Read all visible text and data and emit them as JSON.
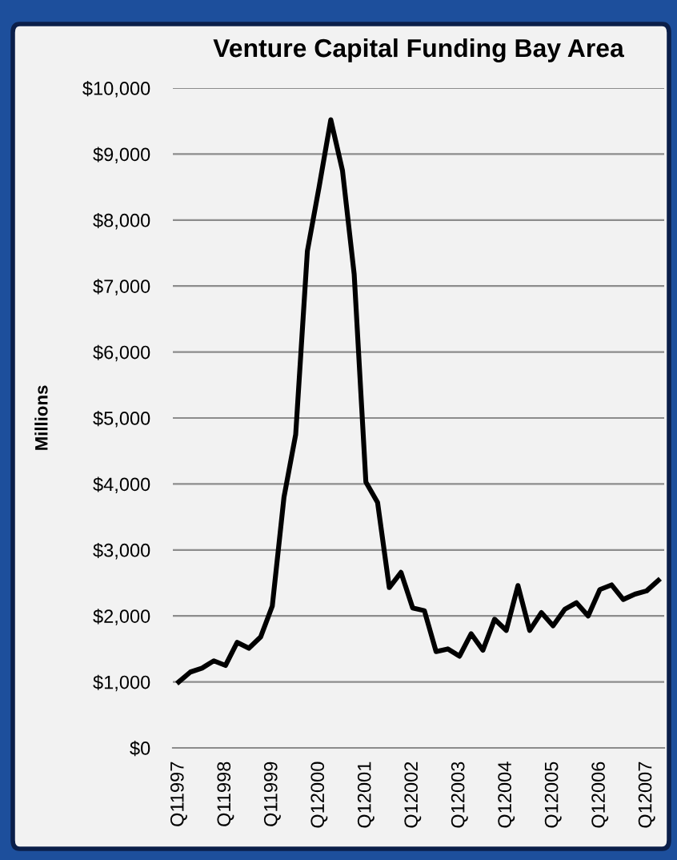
{
  "chart_data": {
    "type": "line",
    "title": "Venture Capital Funding Bay Area",
    "ylabel": "Millions",
    "categories": [
      "Q11997",
      null,
      null,
      null,
      "Q11998",
      null,
      null,
      null,
      "Q11999",
      null,
      null,
      null,
      "Q12000",
      null,
      null,
      null,
      "Q12001",
      null,
      null,
      null,
      "Q12002",
      null,
      null,
      null,
      "Q12003",
      null,
      null,
      null,
      "Q12004",
      null,
      null,
      null,
      "Q12005",
      null,
      null,
      null,
      "Q12006",
      null,
      null,
      null,
      "Q12007",
      null
    ],
    "series": [
      {
        "color": "#000000",
        "values": [
          1000,
          1150,
          1210,
          1320,
          1250,
          1600,
          1510,
          1680,
          2150,
          3800,
          4750,
          7530,
          8500,
          9520,
          8750,
          7180,
          4030,
          3720,
          2430,
          2660,
          2120,
          2080,
          1460,
          1500,
          1390,
          1730,
          1480,
          1950,
          1780,
          2460,
          1780,
          2050,
          1850,
          2100,
          2200,
          2000,
          2400,
          2470,
          2250,
          2330,
          2380,
          2540
        ]
      }
    ],
    "ylim": [
      0,
      10000
    ],
    "yticks": [
      {
        "value": 0,
        "label": "$0"
      },
      {
        "value": 1000,
        "label": "$1,000"
      },
      {
        "value": 2000,
        "label": "$2,000"
      },
      {
        "value": 3000,
        "label": "$3,000"
      },
      {
        "value": 4000,
        "label": "$4,000"
      },
      {
        "value": 5000,
        "label": "$5,000"
      },
      {
        "value": 6000,
        "label": "$6,000"
      },
      {
        "value": 7000,
        "label": "$7,000"
      },
      {
        "value": 8000,
        "label": "$8,000"
      },
      {
        "value": 9000,
        "label": "$9,000"
      },
      {
        "value": 10000,
        "label": "$10,000"
      }
    ],
    "grid": "y",
    "legend": false,
    "marker": "none",
    "line_style": "solid"
  }
}
